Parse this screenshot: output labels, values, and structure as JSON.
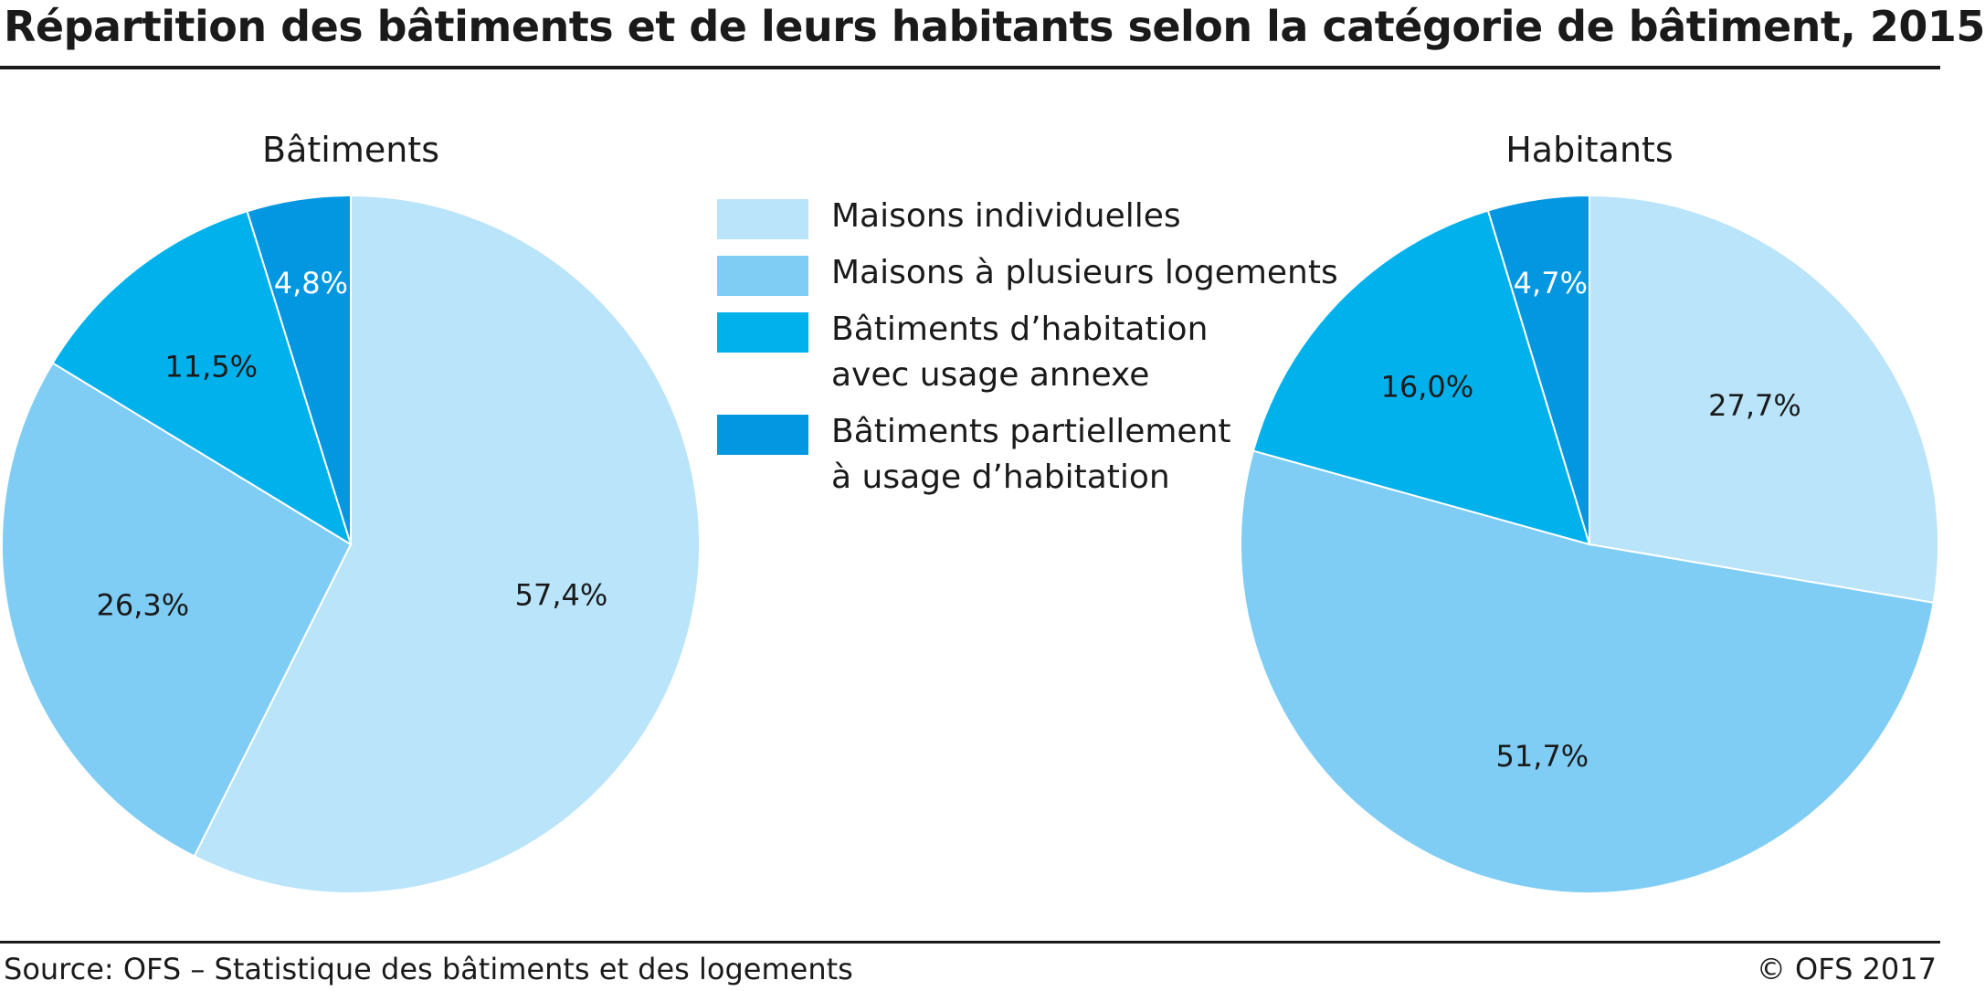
{
  "title": "Répartition des bâtiments et de leurs habitants selon la catégorie de bâtiment, 2015",
  "source": "Source: OFS – Statistique des bâtiments et des logements",
  "copyright": "© OFS 2017",
  "colors": {
    "maisons_individuelles": "#b9e4fa",
    "maisons_plusieurs_logements": "#7fcdf5",
    "batiments_habitation_usage_annexe": "#00b1ec",
    "batiments_partiellement_habitation": "#0397e1",
    "stroke": "#ffffff",
    "text": "#1a1a1a",
    "text_on_dark": "#ffffff"
  },
  "legend": [
    {
      "lines": [
        "Maisons individuelles"
      ],
      "color": "#b9e4fa"
    },
    {
      "lines": [
        "Maisons à plusieurs logements"
      ],
      "color": "#7fcdf5"
    },
    {
      "lines": [
        "Bâtiments d’habitation",
        "avec usage annexe"
      ],
      "color": "#00b1ec"
    },
    {
      "lines": [
        "Bâtiments partiellement",
        "à usage d’habitation"
      ],
      "color": "#0397e1"
    }
  ],
  "chart_data": [
    {
      "type": "pie",
      "title": "Bâtiments",
      "categories": [
        "Maisons individuelles",
        "Maisons à plusieurs logements",
        "Bâtiments d’habitation avec usage annexe",
        "Bâtiments partiellement à usage d’habitation"
      ],
      "values": [
        57.4,
        26.3,
        11.5,
        4.8
      ],
      "labels": [
        "57,4%",
        "26,3%",
        "11,5%",
        "4,8%"
      ]
    },
    {
      "type": "pie",
      "title": "Habitants",
      "categories": [
        "Maisons individuelles",
        "Maisons à plusieurs logements",
        "Bâtiments d’habitation avec usage annexe",
        "Bâtiments partiellement à usage d’habitation"
      ],
      "values": [
        27.7,
        51.7,
        16.0,
        4.7
      ],
      "labels": [
        "27,7%",
        "51,7%",
        "16,0%",
        "4,7%"
      ]
    }
  ]
}
